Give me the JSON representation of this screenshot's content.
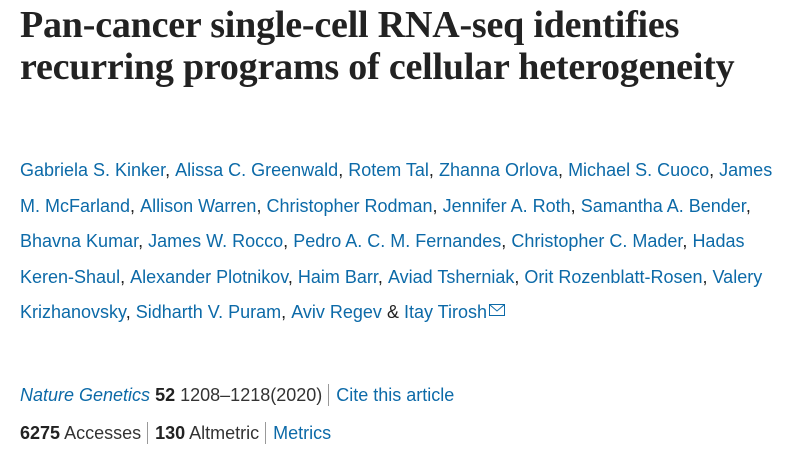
{
  "title": "Pan-cancer single-cell RNA-seq identifies recurring programs of cellular heterogeneity",
  "authors": [
    "Gabriela S. Kinker",
    "Alissa C. Greenwald",
    "Rotem Tal",
    "Zhanna Orlova",
    "Michael S. Cuoco",
    "James M. McFarland",
    "Allison Warren",
    "Christopher Rodman",
    "Jennifer A. Roth",
    "Samantha A. Bender",
    "Bhavna Kumar",
    "James W. Rocco",
    "Pedro A. C. M. Fernandes",
    "Christopher C. Mader",
    "Hadas Keren-Shaul",
    "Alexander Plotnikov",
    "Haim Barr",
    "Aviad Tsherniak",
    "Orit Rozenblatt-Rosen",
    "Valery Krizhanovsky",
    "Sidharth V. Puram",
    "Aviv Regev",
    "Itay Tirosh"
  ],
  "author_conjunction": "&",
  "journal": {
    "name": "Nature Genetics",
    "volume": 52,
    "pages": "1208–1218(2020)",
    "cite": "Cite this article"
  },
  "metrics": {
    "accesses": 6275,
    "accesses_label": "Accesses",
    "altmetric": 130,
    "altmetric_label": "Altmetric",
    "link": "Metrics"
  }
}
